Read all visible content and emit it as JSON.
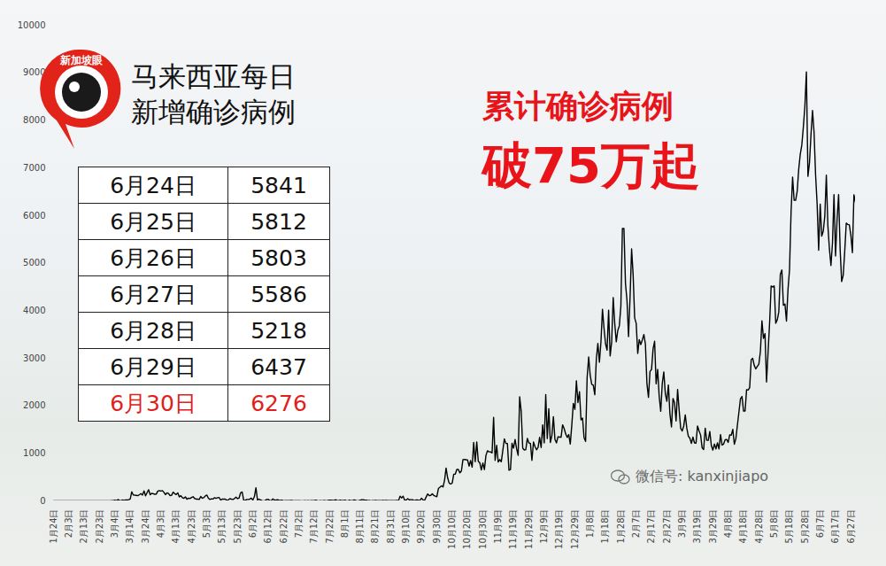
{
  "chart_data": {
    "type": "line",
    "title": "马来西亚每日\n新增确诊病例",
    "annotations": [
      "累计确诊病例",
      "破75万起"
    ],
    "logo": "新加坡眼",
    "watermark": "微信号: kanxinjiapo",
    "color": "#000000",
    "grid": false,
    "ylim": [
      0,
      10000
    ],
    "yticks": [
      0,
      1000,
      2000,
      3000,
      4000,
      5000,
      6000,
      7000,
      8000,
      9000,
      10000
    ],
    "table": [
      {
        "date": "6月24日",
        "value": 5841
      },
      {
        "date": "6月25日",
        "value": 5812
      },
      {
        "date": "6月26日",
        "value": 5803
      },
      {
        "date": "6月27日",
        "value": 5586
      },
      {
        "date": "6月28日",
        "value": 5218
      },
      {
        "date": "6月29日",
        "value": 6437
      },
      {
        "date": "6月30日",
        "value": 6276,
        "color": "#e0201a"
      }
    ],
    "categories": [
      "1月24日",
      null,
      null,
      null,
      null,
      null,
      null,
      null,
      null,
      null,
      "2月3日",
      null,
      null,
      null,
      null,
      null,
      null,
      null,
      null,
      null,
      "2月13日",
      null,
      null,
      null,
      null,
      null,
      null,
      null,
      null,
      null,
      "2月23日",
      null,
      null,
      null,
      null,
      null,
      null,
      null,
      null,
      null,
      "3月4日",
      null,
      null,
      null,
      null,
      null,
      null,
      null,
      null,
      null,
      "3月14日",
      null,
      null,
      null,
      null,
      null,
      null,
      null,
      null,
      null,
      "3月24日",
      null,
      null,
      null,
      null,
      null,
      null,
      null,
      null,
      null,
      "4月3日",
      null,
      null,
      null,
      null,
      null,
      null,
      null,
      null,
      null,
      "4月13日",
      null,
      null,
      null,
      null,
      null,
      null,
      null,
      null,
      null,
      "4月23日",
      null,
      null,
      null,
      null,
      null,
      null,
      null,
      null,
      null,
      "5月3日",
      null,
      null,
      null,
      null,
      null,
      null,
      null,
      null,
      null,
      "5月13日",
      null,
      null,
      null,
      null,
      null,
      null,
      null,
      null,
      null,
      "5月23日",
      null,
      null,
      null,
      null,
      null,
      null,
      null,
      null,
      null,
      "6月2日",
      null,
      null,
      null,
      null,
      null,
      null,
      null,
      null,
      null,
      "6月12日",
      null,
      null,
      null,
      null,
      null,
      null,
      null,
      null,
      null,
      "6月22日",
      null,
      null,
      null,
      null,
      null,
      null,
      null,
      null,
      null,
      "7月2日",
      null,
      null,
      null,
      null,
      null,
      null,
      null,
      null,
      null,
      "7月12日",
      null,
      null,
      null,
      null,
      null,
      null,
      null,
      null,
      null,
      "7月22日",
      null,
      null,
      null,
      null,
      null,
      null,
      null,
      null,
      null,
      "8月1日",
      null,
      null,
      null,
      null,
      null,
      null,
      null,
      null,
      null,
      "8月11日",
      null,
      null,
      null,
      null,
      null,
      null,
      null,
      null,
      null,
      "8月21日",
      null,
      null,
      null,
      null,
      null,
      null,
      null,
      null,
      null,
      "8月31日",
      null,
      null,
      null,
      null,
      null,
      null,
      null,
      null,
      null,
      "9月10日",
      null,
      null,
      null,
      null,
      null,
      null,
      null,
      null,
      null,
      "9月20日",
      null,
      null,
      null,
      null,
      null,
      null,
      null,
      null,
      null,
      "9月30日",
      null,
      null,
      null,
      null,
      null,
      null,
      null,
      null,
      null,
      "10月10日",
      null,
      null,
      null,
      null,
      null,
      null,
      null,
      null,
      null,
      "10月20日",
      null,
      null,
      null,
      null,
      null,
      null,
      null,
      null,
      null,
      "10月30日",
      null,
      null,
      null,
      null,
      null,
      null,
      null,
      null,
      null,
      "11月9日",
      null,
      null,
      null,
      null,
      null,
      null,
      null,
      null,
      null,
      "11月19日",
      null,
      null,
      null,
      null,
      null,
      null,
      null,
      null,
      null,
      "11月29日",
      null,
      null,
      null,
      null,
      null,
      null,
      null,
      null,
      null,
      "12月9日",
      null,
      null,
      null,
      null,
      null,
      null,
      null,
      null,
      null,
      "12月19日",
      null,
      null,
      null,
      null,
      null,
      null,
      null,
      null,
      null,
      "12月29日",
      null,
      null,
      null,
      null,
      null,
      null,
      null,
      null,
      null,
      "1月8日",
      null,
      null,
      null,
      null,
      null,
      null,
      null,
      null,
      null,
      "1月18日",
      null,
      null,
      null,
      null,
      null,
      null,
      null,
      null,
      null,
      "1月28日",
      null,
      null,
      null,
      null,
      null,
      null,
      null,
      null,
      null,
      "2月7日",
      null,
      null,
      null,
      null,
      null,
      null,
      null,
      null,
      null,
      "2月17日",
      null,
      null,
      null,
      null,
      null,
      null,
      null,
      null,
      null,
      "2月27日",
      null,
      null,
      null,
      null,
      null,
      null,
      null,
      null,
      null,
      "3月9日",
      null,
      null,
      null,
      null,
      null,
      null,
      null,
      null,
      null,
      "3月19日",
      null,
      null,
      null,
      null,
      null,
      null,
      null,
      null,
      null,
      "3月29日",
      null,
      null,
      null,
      null,
      null,
      null,
      null,
      null,
      null,
      "4月8日",
      null,
      null,
      null,
      null,
      null,
      null,
      null,
      null,
      null,
      "4月18日",
      null,
      null,
      null,
      null,
      null,
      null,
      null,
      null,
      null,
      "4月28日",
      null,
      null,
      null,
      null,
      null,
      null,
      null,
      null,
      null,
      "5月8日",
      null,
      null,
      null,
      null,
      null,
      null,
      null,
      null,
      null,
      "5月18日",
      null,
      null,
      null,
      null,
      null,
      null,
      null,
      null,
      null,
      "5月28日",
      null,
      null,
      null,
      null,
      null,
      null,
      null,
      null,
      null,
      "6月7日",
      null,
      null,
      null,
      null,
      null,
      null,
      null,
      null,
      null,
      "6月17日",
      null,
      null,
      null,
      null,
      null,
      null,
      null,
      null,
      null,
      "6月27日",
      null,
      null,
      null
    ],
    "values": [
      0,
      3,
      1,
      0,
      3,
      0,
      0,
      0,
      0,
      0,
      0,
      2,
      2,
      1,
      0,
      2,
      0,
      1,
      0,
      0,
      0,
      0,
      3,
      0,
      0,
      0,
      0,
      0,
      0,
      0,
      0,
      0,
      0,
      0,
      2,
      1,
      0,
      0,
      5,
      7,
      14,
      5,
      28,
      10,
      6,
      18,
      12,
      20,
      20,
      26,
      41,
      190,
      125,
      120,
      117,
      110,
      130,
      153,
      123,
      212,
      106,
      172,
      235,
      130,
      159,
      150,
      140,
      142,
      208,
      217,
      208,
      217,
      179,
      131,
      170,
      156,
      109,
      118,
      184,
      153,
      134,
      170,
      85,
      110,
      69,
      54,
      84,
      36,
      57,
      50,
      71,
      88,
      51,
      38,
      40,
      31,
      94,
      57,
      69,
      105,
      122,
      55,
      30,
      45,
      39,
      68,
      54,
      67,
      70,
      16,
      37,
      40,
      36,
      17,
      22,
      47,
      37,
      31,
      50,
      78,
      48,
      60,
      172,
      187,
      15,
      10,
      30,
      30,
      38,
      57,
      20,
      93,
      277,
      19,
      37,
      19,
      7,
      2,
      7,
      31,
      33,
      8,
      6,
      41,
      18,
      14,
      26,
      14,
      11,
      15,
      3,
      4,
      4,
      6,
      6,
      8,
      6,
      2,
      5,
      3,
      7,
      3,
      2,
      3,
      4,
      2,
      6,
      3,
      5,
      5,
      6,
      13,
      7,
      3,
      7,
      2,
      6,
      8,
      3,
      10,
      15,
      16,
      9,
      12,
      23,
      5,
      7,
      17,
      6,
      8,
      14,
      6,
      3,
      16,
      4,
      4,
      20,
      12,
      1,
      5,
      13,
      25,
      25,
      17,
      16,
      5,
      8,
      2,
      4,
      4,
      10,
      5,
      7,
      7,
      4,
      9,
      7,
      11,
      7,
      6,
      4,
      5,
      6,
      4,
      12,
      7,
      100,
      62,
      100,
      12,
      20,
      47,
      22,
      25,
      26,
      7,
      13,
      21,
      15,
      12,
      57,
      21,
      11,
      82,
      147,
      111,
      115,
      150,
      115,
      101,
      89,
      260,
      287,
      317,
      293,
      432,
      691,
      489,
      374,
      354,
      374,
      561,
      563,
      660,
      660,
      589,
      629,
      869,
      871,
      865,
      862,
      732,
      847,
      710,
      1228,
      823,
      1240,
      835,
      801,
      649,
      799,
      659,
      957,
      1054,
      1032,
      1032,
      1009,
      1755,
      852,
      1168,
      818,
      869,
      822,
      1060,
      1304,
      1208,
      1208,
      646,
      659,
      1210,
      1109,
      1290,
      1096,
      960,
      2188,
      1884,
      1109,
      1071,
      1079,
      1315,
      1219,
      1209,
      851,
      1238,
      1141,
      1075,
      1123,
      1335,
      1123,
      1600,
      1219,
      2234,
      1310,
      1937,
      1229,
      1371,
      1772,
      1295,
      1220,
      1349,
      1340,
      1340,
      1599,
      1522,
      1409,
      1335,
      1394,
      1196,
      1594,
      2051,
      1924,
      2525,
      2068,
      2295,
      1704,
      1741,
      1328,
      1251,
      2593,
      3027,
      2643,
      2451,
      2433,
      2232,
      2985,
      3309,
      2916,
      3337,
      4029,
      3631,
      3306,
      3170,
      4008,
      3048,
      3346,
      4275,
      3734,
      3346,
      3585,
      3680,
      4094,
      5725,
      5728,
      4571,
      4214,
      3455,
      4284,
      5298,
      4755,
      3847,
      3731,
      3100,
      3391,
      3288,
      3384,
      3499,
      3297,
      2464,
      2176,
      2720,
      2764,
      3195,
      3356,
      2461,
      2764,
      2192,
      1884,
      2468,
      2712,
      2253,
      2094,
      2437,
      1828,
      1555,
      2154,
      2063,
      1680,
      2341,
      1911,
      1529,
      1469,
      1575,
      1809,
      1529,
      1361,
      1318,
      1208,
      1341,
      1219,
      1213,
      1575,
      1470,
      1385,
      1116,
      1079,
      1530,
      1275,
      1273,
      1459,
      1163,
      1067,
      1195,
      1094,
      1220,
      1094,
      1394,
      1174,
      1195,
      1286,
      1291,
      1231,
      1389,
      1380,
      1503,
      1191,
      1307,
      1593,
      1872,
      2148,
      2195,
      1889,
      1889,
      2340,
      2331,
      2382,
      2971,
      2997,
      2847,
      2776,
      2827,
      2875,
      3142,
      3788,
      3418,
      3516,
      2500,
      3120,
      3744,
      4519,
      4498,
      4519,
      3733,
      3807,
      3973,
      4765,
      4855,
      4113,
      4140,
      3780,
      4446,
      4865,
      6075,
      6806,
      6320,
      6320,
      6509,
      6976,
      7289,
      7478,
      7857,
      8290,
      9020,
      6824,
      7105,
      7703,
      8209,
      7748,
      6849,
      6241,
      5271,
      6239,
      5566,
      5671,
      5984,
      6849,
      5793,
      5304,
      4949,
      5419,
      6438,
      5150,
      5911,
      6440,
      5293,
      4611,
      4743,
      5244,
      5841,
      5812,
      5803,
      5586,
      5218,
      6437,
      6276
    ]
  }
}
